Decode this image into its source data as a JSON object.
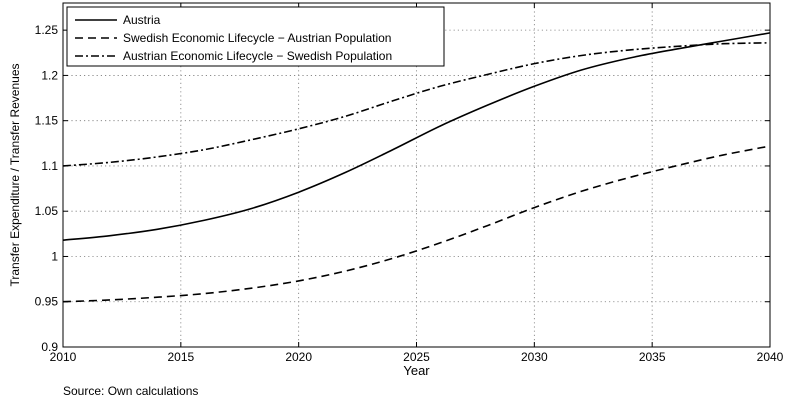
{
  "chart_data": {
    "type": "line",
    "xlabel": "Year",
    "ylabel": "Transfer Expenditure / Transfer Revenues",
    "xlim": [
      2010,
      2040
    ],
    "ylim": [
      0.9,
      1.28
    ],
    "xticks": [
      2010,
      2015,
      2020,
      2025,
      2030,
      2035,
      2040
    ],
    "xtick_labels": [
      "2010",
      "2015",
      "2020",
      "2025",
      "2030",
      "2035",
      "2040"
    ],
    "yticks": [
      0.9,
      0.95,
      1.0,
      1.05,
      1.1,
      1.15,
      1.2,
      1.25
    ],
    "ytick_labels": [
      "0.9",
      "0.95",
      "1",
      "1.05",
      "1.1",
      "1.15",
      "1.2",
      "1.25"
    ],
    "grid": true,
    "legend_position": "top-left",
    "series": [
      {
        "name": "Austria",
        "style": "solid",
        "x": [
          2010,
          2012,
          2014,
          2016,
          2018,
          2020,
          2022,
          2024,
          2026,
          2028,
          2030,
          2032,
          2034,
          2036,
          2038,
          2040
        ],
        "values": [
          1.018,
          1.023,
          1.03,
          1.04,
          1.053,
          1.071,
          1.093,
          1.118,
          1.144,
          1.167,
          1.188,
          1.206,
          1.219,
          1.229,
          1.238,
          1.247
        ]
      },
      {
        "name": "Swedish Economic Lifecycle − Austrian Population",
        "style": "dashed",
        "x": [
          2010,
          2012,
          2014,
          2016,
          2018,
          2020,
          2022,
          2024,
          2026,
          2028,
          2030,
          2032,
          2034,
          2036,
          2038,
          2040
        ],
        "values": [
          0.95,
          0.952,
          0.955,
          0.959,
          0.965,
          0.973,
          0.984,
          0.998,
          1.015,
          1.034,
          1.054,
          1.072,
          1.087,
          1.1,
          1.112,
          1.122
        ]
      },
      {
        "name": "Austrian Economic Lifecycle − Swedish Population",
        "style": "dashdot",
        "x": [
          2010,
          2012,
          2014,
          2016,
          2018,
          2020,
          2022,
          2024,
          2026,
          2028,
          2030,
          2032,
          2034,
          2036,
          2038,
          2040
        ],
        "values": [
          1.1,
          1.104,
          1.11,
          1.118,
          1.129,
          1.141,
          1.155,
          1.172,
          1.188,
          1.201,
          1.213,
          1.222,
          1.228,
          1.232,
          1.235,
          1.236
        ]
      }
    ]
  },
  "footer": {
    "source": "Source: Own calculations"
  }
}
